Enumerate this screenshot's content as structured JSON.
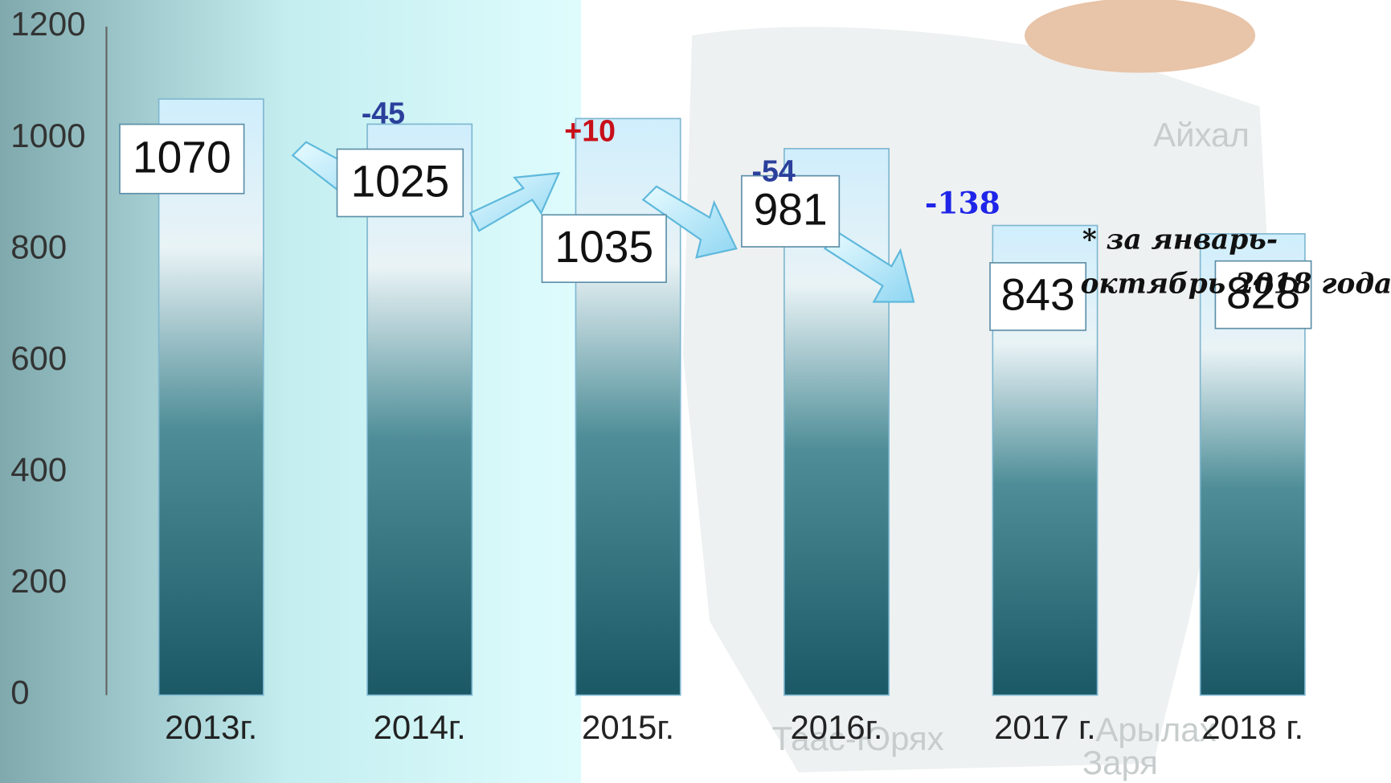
{
  "chart_data": {
    "type": "bar",
    "categories": [
      "2013г.",
      "2014г.",
      "2015г.",
      "2016г.",
      "2017 г.",
      "2018 г."
    ],
    "values": [
      1070,
      1025,
      1035,
      981,
      843,
      828
    ],
    "ylim": [
      0,
      1200
    ],
    "yticks": [
      0,
      200,
      400,
      600,
      800,
      1000,
      1200
    ],
    "annotations": [
      {
        "text": "-45",
        "color": "#2b3f9c"
      },
      {
        "text": "+10",
        "color": "#c8101a"
      },
      {
        "text": "-54",
        "color": "#2b3f9c"
      },
      {
        "text": "-138",
        "color": "#1f25e8"
      }
    ],
    "note_lines": [
      "* за январь-",
      "октябрь 2018 года"
    ]
  },
  "map_labels": [
    "Айхал",
    "Таас-Юрях",
    "Арылах",
    "Заря"
  ]
}
